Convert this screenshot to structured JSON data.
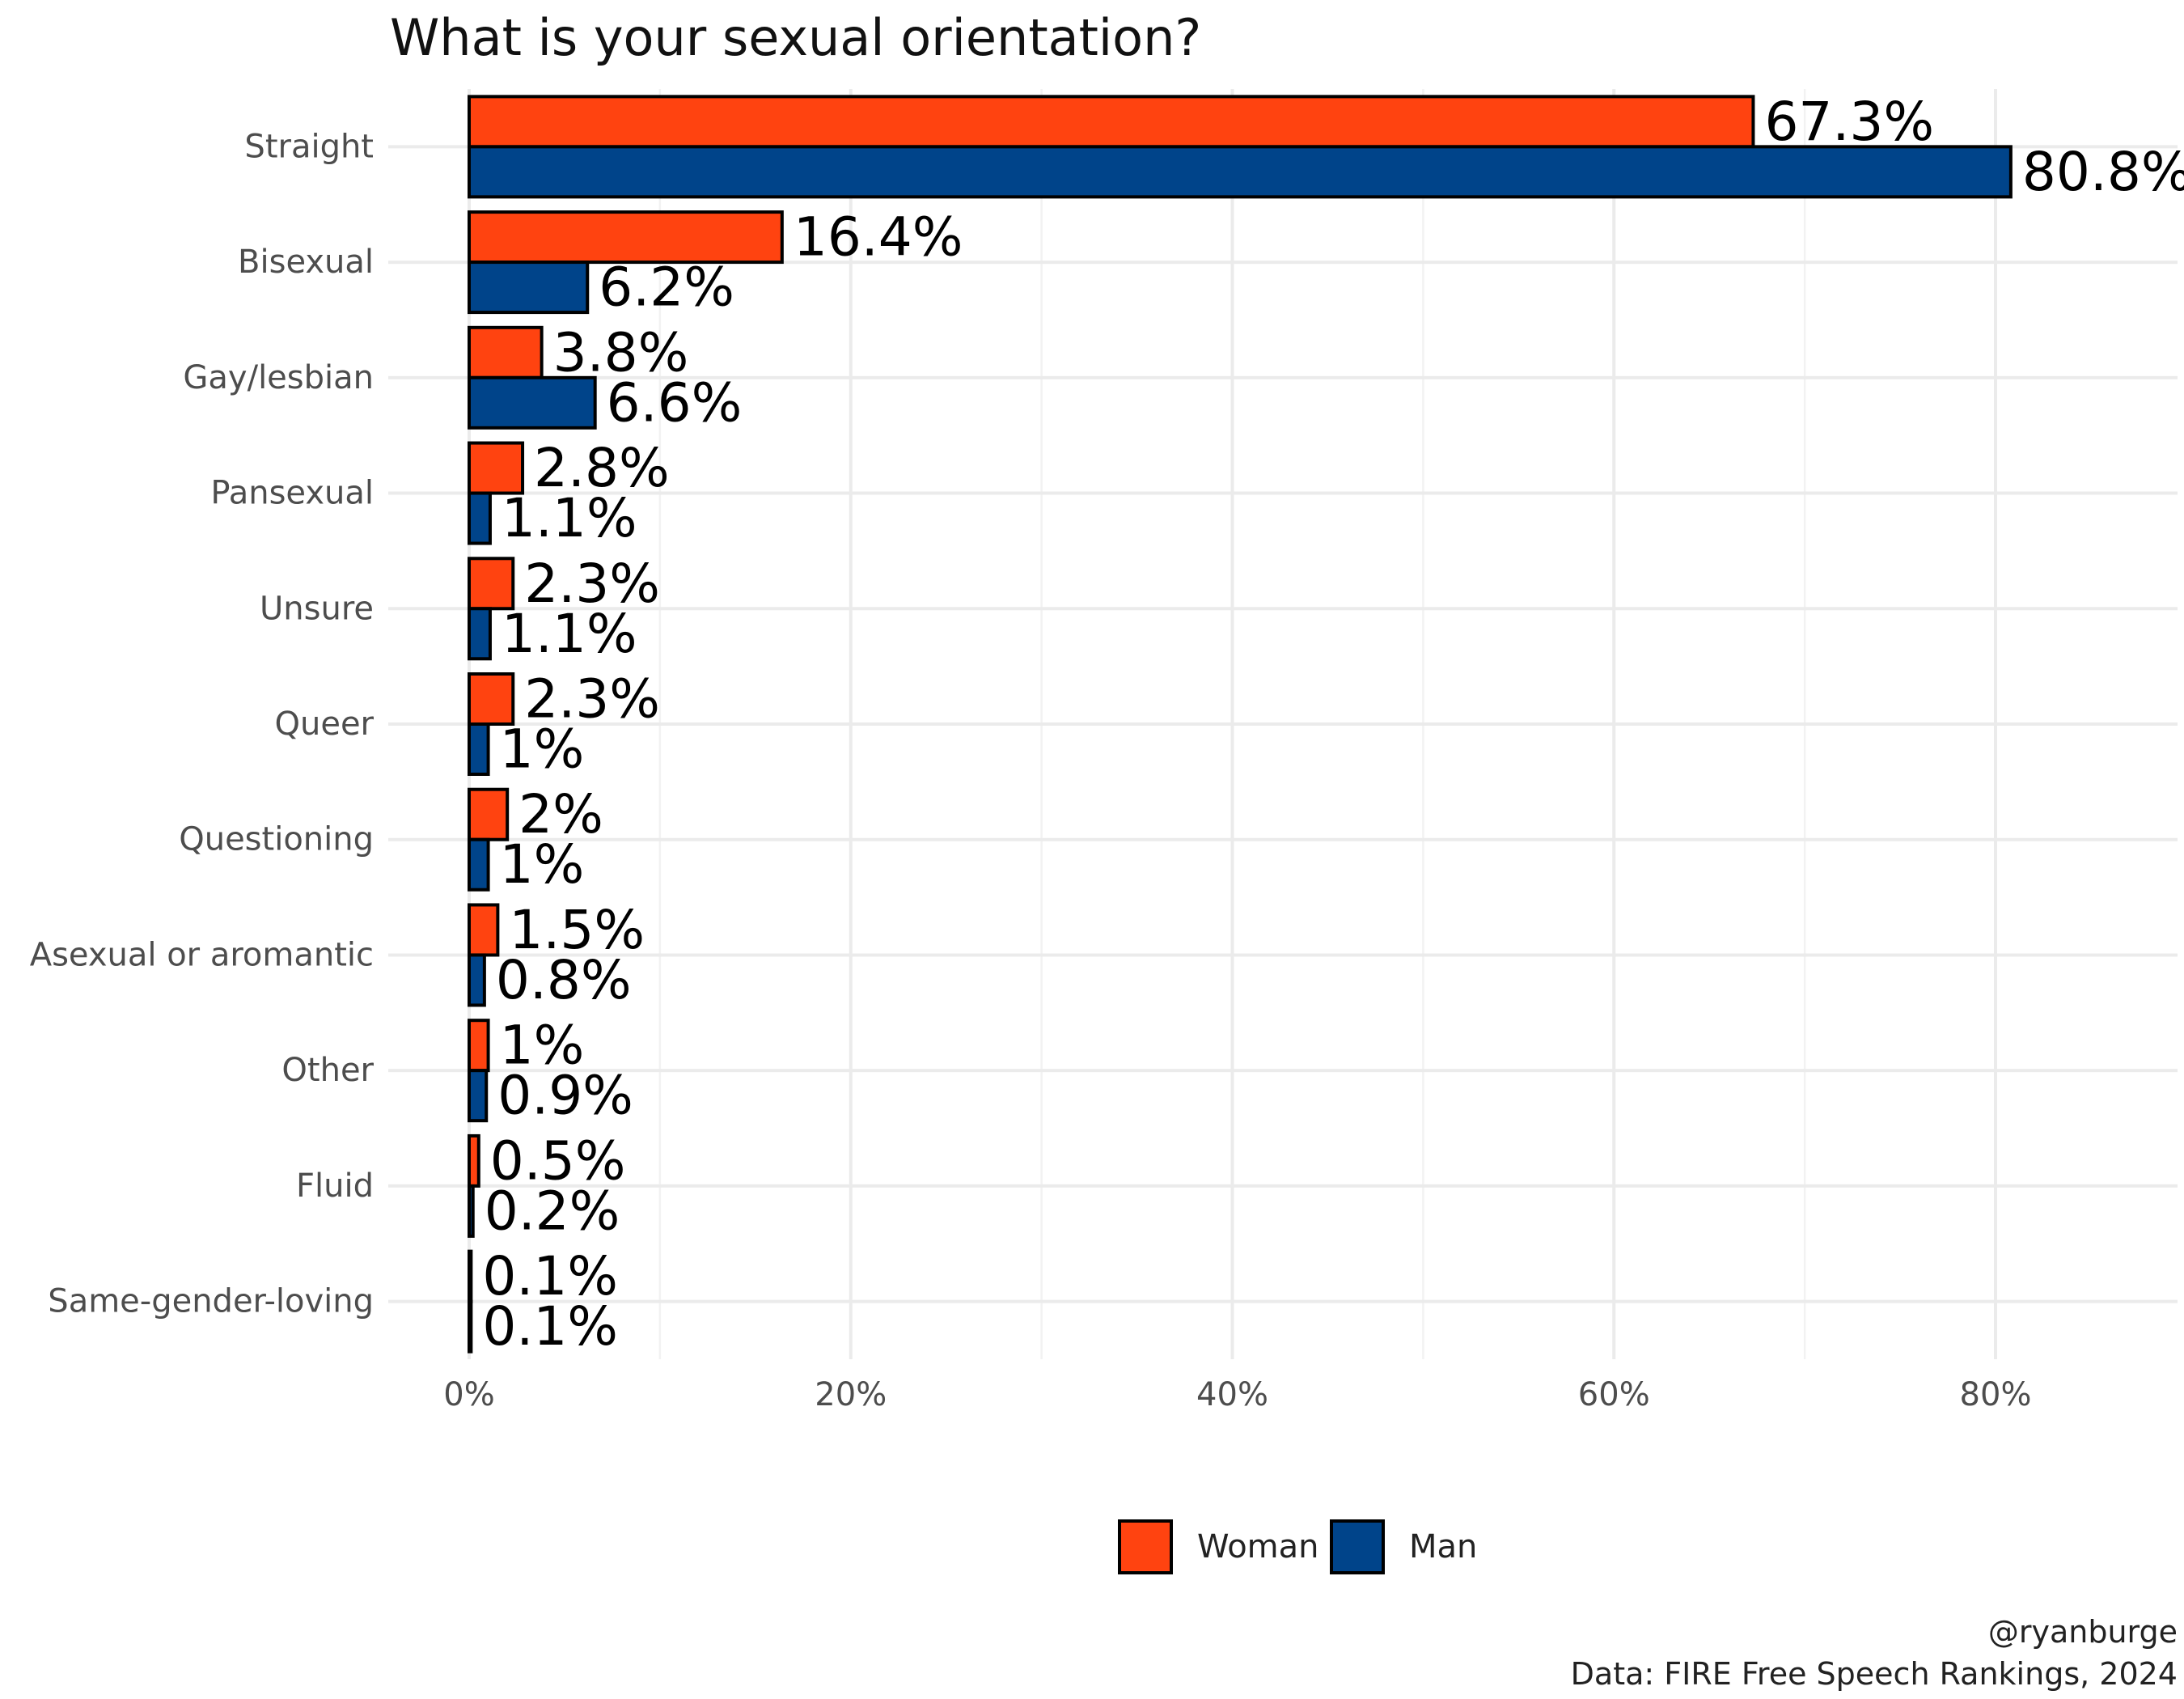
{
  "chart_data": {
    "type": "bar",
    "orientation": "horizontal",
    "title": "What is your sexual orientation?",
    "xlabel": "",
    "ylabel": "",
    "categories": [
      "Straight",
      "Bisexual",
      "Gay/lesbian",
      "Pansexual",
      "Unsure",
      "Queer",
      "Questioning",
      "Asexual or aromantic",
      "Other",
      "Fluid",
      "Same-gender-loving"
    ],
    "series": [
      {
        "name": "Woman",
        "color": "#ff4310",
        "values": [
          67.3,
          16.4,
          3.8,
          2.8,
          2.3,
          2.3,
          2,
          1.5,
          1,
          0.5,
          0.1
        ],
        "labels": [
          "67.3%",
          "16.4%",
          "3.8%",
          "2.8%",
          "2.3%",
          "2.3%",
          "2%",
          "1.5%",
          "1%",
          "0.5%",
          "0.1%"
        ]
      },
      {
        "name": "Man",
        "color": "#00448a",
        "values": [
          80.8,
          6.2,
          6.6,
          1.1,
          1.1,
          1,
          1,
          0.8,
          0.9,
          0.2,
          0.1
        ],
        "labels": [
          "80.8%",
          "6.2%",
          "6.6%",
          "1.1%",
          "1.1%",
          "1%",
          "1%",
          "0.8%",
          "0.9%",
          "0.2%",
          "0.1%"
        ]
      }
    ],
    "x_ticks": [
      0,
      20,
      40,
      60,
      80
    ],
    "x_tick_labels": [
      "0%",
      "20%",
      "40%",
      "60%",
      "80%"
    ],
    "xlim": [
      0,
      89.5
    ],
    "grid": true,
    "legend_position": "bottom",
    "caption": [
      "@ryanburge",
      "Data: FIRE Free Speech Rankings, 2024"
    ]
  }
}
